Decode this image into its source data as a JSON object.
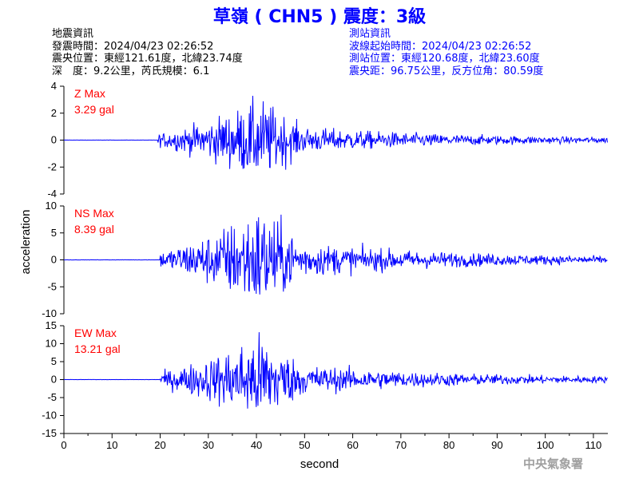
{
  "title": "草嶺 ( CHN5 ) 震度：3級",
  "quake_info": {
    "heading": "地震資訊",
    "time": "發震時間：2024/04/23 02:26:52",
    "epicenter": "震央位置：東經121.61度，北緯23.74度",
    "depth_magnitude": "深　度：9.2公里，芮氏規模：6.1"
  },
  "station_info": {
    "heading": "測站資訊",
    "wave_start": "波線起始時間：2024/04/23 02:26:52",
    "location": "測站位置：東經120.68度，北緯23.60度",
    "distance": "震央距：96.75公里，反方位角：80.59度"
  },
  "agency": "中央氣象署",
  "colors": {
    "title": "#0000ff",
    "trace": "#0000ff",
    "max_label": "#ff0000",
    "station_info": "#0000ff",
    "agency": "#a0a0a0"
  },
  "chart_data": {
    "type": "line",
    "xlabel": "second",
    "ylabel": "acceleration",
    "xlim": [
      0,
      113
    ],
    "xticks": [
      0,
      10,
      20,
      30,
      40,
      50,
      60,
      70,
      80,
      90,
      100,
      110
    ],
    "panels": [
      {
        "name": "Z",
        "max_label": "Z Max",
        "max_value": "3.29 gal",
        "ylim": [
          -4,
          4
        ],
        "yticks": [
          -4,
          -2,
          0,
          2,
          4
        ],
        "peak": 3.29,
        "signal_start": 19.5
      },
      {
        "name": "NS",
        "max_label": "NS Max",
        "max_value": "8.39 gal",
        "ylim": [
          -10,
          10
        ],
        "yticks": [
          -10,
          -5,
          0,
          5,
          10
        ],
        "peak": 8.39,
        "signal_start": 20
      },
      {
        "name": "EW",
        "max_label": "EW Max",
        "max_value": "13.21 gal",
        "ylim": [
          -15,
          15
        ],
        "yticks": [
          -15,
          -10,
          -5,
          0,
          5,
          10,
          15
        ],
        "peak": 13.21,
        "signal_start": 20
      }
    ]
  }
}
